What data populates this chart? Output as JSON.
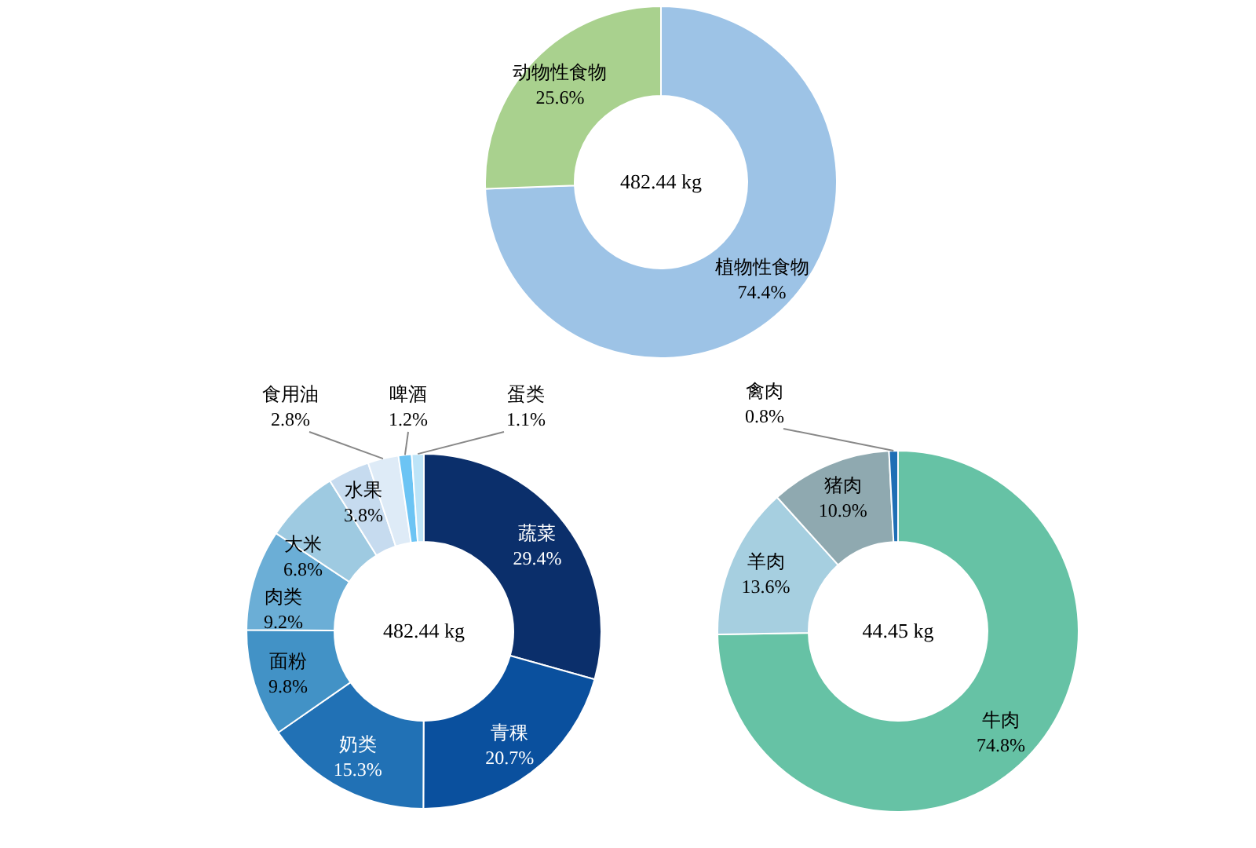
{
  "chart_data": [
    {
      "type": "donut",
      "categories": [
        "植物性食物",
        "动物性食物"
      ],
      "values": [
        74.4,
        25.6
      ],
      "colors": [
        "#9dc3e6",
        "#a9d18e"
      ],
      "value_labels": [
        "74.4%",
        "25.6%"
      ],
      "annotations": [
        "482.44 kg"
      ]
    },
    {
      "type": "donut",
      "categories": [
        "蔬菜",
        "青稞",
        "奶类",
        "面粉",
        "肉类",
        "大米",
        "水果",
        "食用油",
        "啤酒",
        "蛋类"
      ],
      "values": [
        29.4,
        20.7,
        15.3,
        9.8,
        9.2,
        6.8,
        3.8,
        2.8,
        1.2,
        1.1
      ],
      "colors": [
        "#0b2f6b",
        "#0a509e",
        "#2171b5",
        "#4292c6",
        "#6baed6",
        "#9ecae1",
        "#c6dbef",
        "#deebf7",
        "#6cc4f4",
        "#bde4f8"
      ],
      "value_labels": [
        "29.4%",
        "20.7%",
        "15.3%",
        "9.8%",
        "9.2%",
        "6.8%",
        "3.8%",
        "2.8%",
        "1.2%",
        "1.1%"
      ],
      "annotations": [
        "482.44 kg"
      ]
    },
    {
      "type": "donut",
      "categories": [
        "牛肉",
        "羊肉",
        "猪肉",
        "禽肉"
      ],
      "values": [
        74.8,
        13.6,
        10.9,
        0.8
      ],
      "colors": [
        "#66c2a5",
        "#a6cfe0",
        "#8fa9b0",
        "#1f6fb5"
      ],
      "value_labels": [
        "74.8%",
        "13.6%",
        "10.9%",
        "0.8%"
      ],
      "annotations": [
        "44.45 kg"
      ]
    }
  ]
}
